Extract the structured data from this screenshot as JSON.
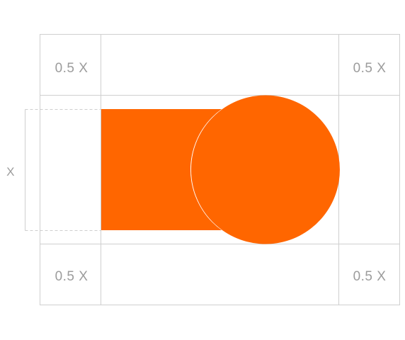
{
  "colors": {
    "accent": "#ff6600",
    "grid_line": "#cfcfcf",
    "label_text": "#9c9c9c",
    "background": "#ffffff"
  },
  "labels": {
    "top_left": "0.5 X",
    "top_right": "0.5 X",
    "bottom_left": "0.5 X",
    "bottom_right": "0.5 X",
    "height_marker": "X"
  }
}
